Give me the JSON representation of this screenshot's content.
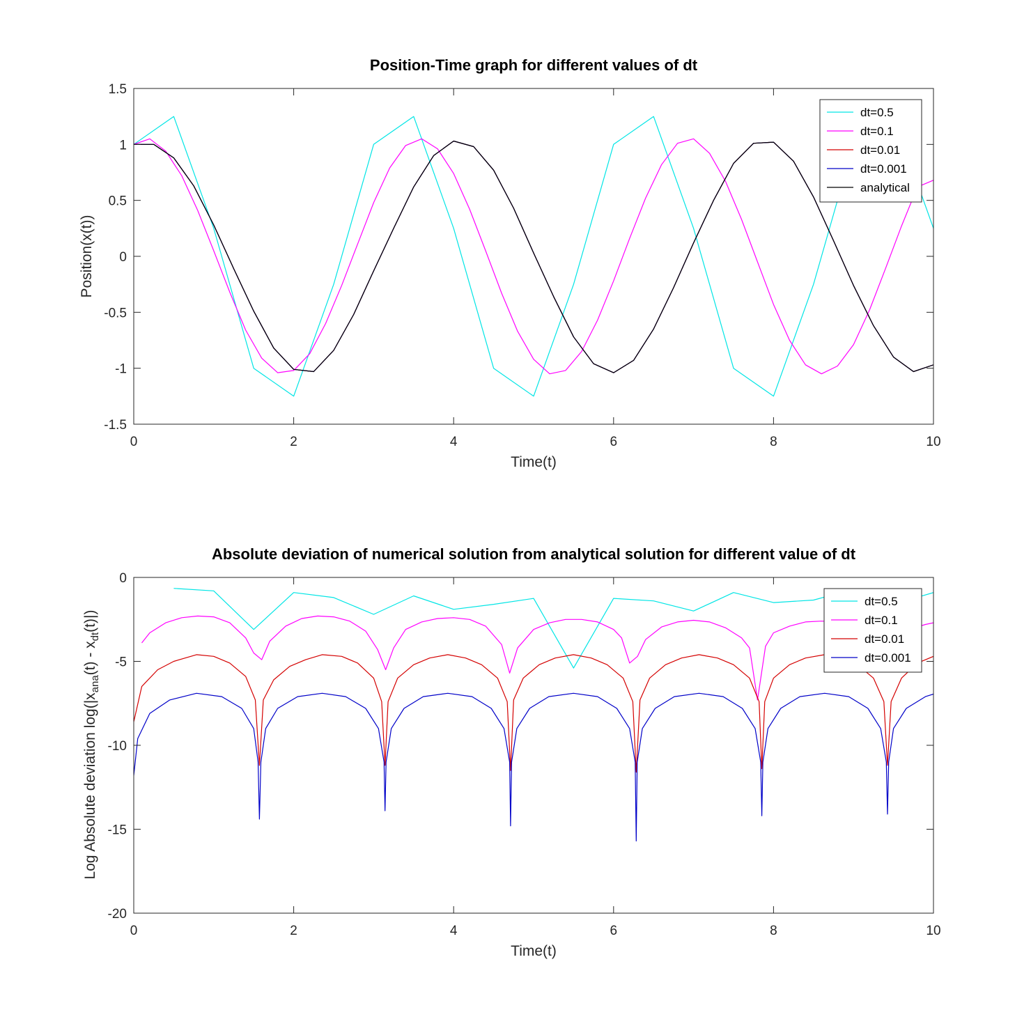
{
  "chart_data": [
    {
      "type": "line",
      "title": "Position-Time graph for different values of dt",
      "xlabel": "Time(t)",
      "ylabel": "Position(x(t))",
      "xlim": [
        0,
        10
      ],
      "ylim": [
        -1.5,
        1.5
      ],
      "xticks": [
        "0",
        "2",
        "4",
        "6",
        "8",
        "10"
      ],
      "yticks": [
        "1.5",
        "1",
        "0.5",
        "0",
        "-0.5",
        "-1",
        "-1.5"
      ],
      "legend_position": "top-right",
      "grid": false,
      "series": [
        {
          "name": "dt=0.5",
          "color": "#00e5e5",
          "x": [
            0,
            0.5,
            1,
            1.5,
            2,
            2.5,
            3,
            3.5,
            4,
            4.5,
            5,
            5.5,
            6,
            6.5,
            7,
            7.5,
            8,
            8.5,
            9,
            9.5,
            10
          ],
          "y": [
            1,
            1.25,
            0.25,
            -1,
            -1.25,
            -0.25,
            1,
            1.25,
            0.25,
            -1,
            -1.25,
            -0.25,
            1,
            1.25,
            0.25,
            -1,
            -1.25,
            -0.25,
            1,
            1.25,
            0.25
          ]
        },
        {
          "name": "dt=0.1",
          "color": "#ff00ff",
          "x": [
            0,
            0.2,
            0.4,
            0.6,
            0.8,
            1.0,
            1.2,
            1.4,
            1.6,
            1.8,
            2.0,
            2.2,
            2.4,
            2.6,
            2.8,
            3.0,
            3.2,
            3.4,
            3.6,
            3.8,
            4.0,
            4.2,
            4.4,
            4.6,
            4.8,
            5.0,
            5.2,
            5.4,
            5.6,
            5.8,
            6.0,
            6.2,
            6.4,
            6.6,
            6.8,
            7.0,
            7.2,
            7.4,
            7.6,
            7.8,
            8.0,
            8.2,
            8.4,
            8.6,
            8.8,
            9.0,
            9.2,
            9.4,
            9.6,
            9.8,
            10.0
          ],
          "y": [
            1.0,
            1.05,
            0.94,
            0.72,
            0.41,
            0.05,
            -0.32,
            -0.66,
            -0.91,
            -1.04,
            -1.02,
            -0.87,
            -0.6,
            -0.26,
            0.11,
            0.48,
            0.79,
            0.99,
            1.05,
            0.96,
            0.74,
            0.42,
            0.05,
            -0.33,
            -0.67,
            -0.92,
            -1.05,
            -1.02,
            -0.85,
            -0.57,
            -0.22,
            0.16,
            0.52,
            0.82,
            1.01,
            1.05,
            0.92,
            0.67,
            0.33,
            -0.05,
            -0.43,
            -0.75,
            -0.97,
            -1.05,
            -0.98,
            -0.79,
            -0.48,
            -0.11,
            0.27,
            0.62,
            0.68
          ]
        },
        {
          "name": "dt=0.01",
          "color": "#d40000",
          "x": [
            0,
            0.25,
            0.5,
            0.75,
            1.0,
            1.25,
            1.5,
            1.75,
            2.0,
            2.25,
            2.5,
            2.75,
            3.0,
            3.25,
            3.5,
            3.75,
            4.0,
            4.25,
            4.5,
            4.75,
            5.0,
            5.25,
            5.5,
            5.75,
            6.0,
            6.25,
            6.5,
            6.75,
            7.0,
            7.25,
            7.5,
            7.75,
            8.0,
            8.25,
            8.5,
            8.75,
            9.0,
            9.25,
            9.5,
            9.75,
            10.0
          ],
          "y": [
            1.0,
            1.0,
            0.88,
            0.63,
            0.28,
            -0.11,
            -0.49,
            -0.82,
            -1.01,
            -1.03,
            -0.84,
            -0.52,
            -0.13,
            0.25,
            0.62,
            0.9,
            1.03,
            0.98,
            0.77,
            0.43,
            0.03,
            -0.36,
            -0.72,
            -0.96,
            -1.04,
            -0.93,
            -0.65,
            -0.28,
            0.12,
            0.5,
            0.83,
            1.01,
            1.02,
            0.85,
            0.53,
            0.14,
            -0.26,
            -0.62,
            -0.9,
            -1.03,
            -0.97
          ]
        },
        {
          "name": "dt=0.001",
          "color": "#0000c8",
          "x": [
            0,
            0.25,
            0.5,
            0.75,
            1.0,
            1.25,
            1.5,
            1.75,
            2.0,
            2.25,
            2.5,
            2.75,
            3.0,
            3.25,
            3.5,
            3.75,
            4.0,
            4.25,
            4.5,
            4.75,
            5.0,
            5.25,
            5.5,
            5.75,
            6.0,
            6.25,
            6.5,
            6.75,
            7.0,
            7.25,
            7.5,
            7.75,
            8.0,
            8.25,
            8.5,
            8.75,
            9.0,
            9.25,
            9.5,
            9.75,
            10.0
          ],
          "y": [
            1.0,
            1.0,
            0.88,
            0.63,
            0.28,
            -0.11,
            -0.49,
            -0.82,
            -1.01,
            -1.03,
            -0.84,
            -0.52,
            -0.13,
            0.25,
            0.62,
            0.9,
            1.03,
            0.98,
            0.77,
            0.43,
            0.03,
            -0.36,
            -0.72,
            -0.96,
            -1.04,
            -0.93,
            -0.65,
            -0.28,
            0.12,
            0.5,
            0.83,
            1.01,
            1.02,
            0.85,
            0.53,
            0.14,
            -0.26,
            -0.62,
            -0.9,
            -1.03,
            -0.97
          ]
        },
        {
          "name": "analytical",
          "color": "#000000",
          "x": [
            0,
            0.25,
            0.5,
            0.75,
            1.0,
            1.25,
            1.5,
            1.75,
            2.0,
            2.25,
            2.5,
            2.75,
            3.0,
            3.25,
            3.5,
            3.75,
            4.0,
            4.25,
            4.5,
            4.75,
            5.0,
            5.25,
            5.5,
            5.75,
            6.0,
            6.25,
            6.5,
            6.75,
            7.0,
            7.25,
            7.5,
            7.75,
            8.0,
            8.25,
            8.5,
            8.75,
            9.0,
            9.25,
            9.5,
            9.75,
            10.0
          ],
          "y": [
            1.0,
            1.0,
            0.88,
            0.63,
            0.28,
            -0.11,
            -0.49,
            -0.82,
            -1.01,
            -1.03,
            -0.84,
            -0.52,
            -0.13,
            0.25,
            0.62,
            0.9,
            1.03,
            0.98,
            0.77,
            0.43,
            0.03,
            -0.36,
            -0.72,
            -0.96,
            -1.04,
            -0.93,
            -0.65,
            -0.28,
            0.12,
            0.5,
            0.83,
            1.01,
            1.02,
            0.85,
            0.53,
            0.14,
            -0.26,
            -0.62,
            -0.9,
            -1.03,
            -0.97
          ]
        }
      ]
    },
    {
      "type": "line",
      "title": "Absolute deviation of numerical solution from analytical solution for different value of dt",
      "xlabel": "Time(t)",
      "ylabel_parts": [
        "Log Absolute deviation log(|x",
        "ana",
        "(t) - x",
        "dt",
        "(t)|)"
      ],
      "xlim": [
        0,
        10
      ],
      "ylim": [
        -20,
        0
      ],
      "xticks": [
        "0",
        "2",
        "4",
        "6",
        "8",
        "10"
      ],
      "yticks": [
        "0",
        "-5",
        "-10",
        "-15",
        "-20"
      ],
      "legend_position": "top-right",
      "grid": false,
      "series": [
        {
          "name": "dt=0.5",
          "color": "#00e5e5",
          "x": [
            0.5,
            1.0,
            1.5,
            2.0,
            2.5,
            3.0,
            3.5,
            4.0,
            4.5,
            5.0,
            5.5,
            6.0,
            6.5,
            7.0,
            7.5,
            8.0,
            8.5,
            9.0,
            9.5,
            10.0
          ],
          "y": [
            -0.65,
            -0.8,
            -3.1,
            -0.9,
            -1.2,
            -2.2,
            -1.1,
            -1.9,
            -1.6,
            -1.25,
            -5.4,
            -1.25,
            -1.4,
            -2.0,
            -0.9,
            -1.5,
            -1.35,
            -0.7,
            -1.6,
            -0.9
          ]
        },
        {
          "name": "dt=0.1",
          "color": "#ff00ff",
          "x": [
            0.1,
            0.2,
            0.4,
            0.6,
            0.8,
            1.0,
            1.2,
            1.4,
            1.5,
            1.6,
            1.7,
            1.9,
            2.1,
            2.3,
            2.5,
            2.7,
            2.9,
            3.05,
            3.15,
            3.25,
            3.4,
            3.6,
            3.8,
            4.0,
            4.2,
            4.4,
            4.6,
            4.7,
            4.8,
            5.0,
            5.2,
            5.4,
            5.6,
            5.8,
            6.0,
            6.1,
            6.2,
            6.3,
            6.4,
            6.6,
            6.8,
            7.0,
            7.2,
            7.4,
            7.6,
            7.7,
            7.8,
            7.9,
            8.0,
            8.2,
            8.4,
            8.6,
            8.8,
            9.0,
            9.2,
            9.3,
            9.4,
            9.5,
            9.7,
            9.9,
            10.0
          ],
          "y": [
            -3.9,
            -3.3,
            -2.7,
            -2.4,
            -2.3,
            -2.35,
            -2.7,
            -3.6,
            -4.5,
            -4.9,
            -3.8,
            -2.9,
            -2.45,
            -2.3,
            -2.35,
            -2.6,
            -3.2,
            -4.3,
            -5.5,
            -4.2,
            -3.1,
            -2.65,
            -2.45,
            -2.4,
            -2.5,
            -2.9,
            -4.0,
            -5.7,
            -4.2,
            -3.1,
            -2.7,
            -2.5,
            -2.5,
            -2.65,
            -3.1,
            -3.6,
            -5.1,
            -4.7,
            -3.7,
            -2.95,
            -2.65,
            -2.55,
            -2.65,
            -3.0,
            -3.6,
            -4.2,
            -7.3,
            -4.1,
            -3.3,
            -2.9,
            -2.65,
            -2.6,
            -2.65,
            -2.9,
            -3.4,
            -4.1,
            -5.0,
            -4.0,
            -3.1,
            -2.8,
            -2.7
          ]
        },
        {
          "name": "dt=0.01",
          "color": "#d40000",
          "x": [
            0,
            0.1,
            0.3,
            0.5,
            0.785,
            1.0,
            1.2,
            1.4,
            1.52,
            1.571,
            1.62,
            1.75,
            1.95,
            2.15,
            2.356,
            2.6,
            2.8,
            3.0,
            3.1,
            3.142,
            3.18,
            3.3,
            3.5,
            3.7,
            3.927,
            4.15,
            4.35,
            4.55,
            4.67,
            4.712,
            4.75,
            4.87,
            5.07,
            5.27,
            5.498,
            5.72,
            5.92,
            6.12,
            6.24,
            6.283,
            6.33,
            6.45,
            6.65,
            6.85,
            7.069,
            7.3,
            7.5,
            7.7,
            7.82,
            7.854,
            7.89,
            8.0,
            8.2,
            8.4,
            8.639,
            8.85,
            9.05,
            9.25,
            9.38,
            9.425,
            9.47,
            9.6,
            9.8,
            10.0
          ],
          "y": [
            -8.6,
            -6.5,
            -5.5,
            -5.0,
            -4.6,
            -4.7,
            -5.1,
            -5.9,
            -7.3,
            -11.2,
            -7.3,
            -6.1,
            -5.3,
            -4.9,
            -4.6,
            -4.7,
            -5.1,
            -6.0,
            -7.4,
            -11.2,
            -7.4,
            -6.0,
            -5.2,
            -4.8,
            -4.6,
            -4.8,
            -5.2,
            -6.0,
            -7.4,
            -11.5,
            -7.3,
            -6.0,
            -5.2,
            -4.8,
            -4.6,
            -4.8,
            -5.2,
            -6.0,
            -7.4,
            -11.6,
            -7.3,
            -6.0,
            -5.2,
            -4.8,
            -4.6,
            -4.8,
            -5.2,
            -6.0,
            -7.4,
            -11.4,
            -7.4,
            -6.0,
            -5.2,
            -4.8,
            -4.6,
            -4.8,
            -5.2,
            -6.0,
            -7.4,
            -11.2,
            -7.4,
            -6.0,
            -5.1,
            -4.7
          ]
        },
        {
          "name": "dt=0.001",
          "color": "#0000c8",
          "x": [
            0,
            0.05,
            0.2,
            0.45,
            0.785,
            1.1,
            1.35,
            1.5,
            1.555,
            1.571,
            1.59,
            1.65,
            1.8,
            2.05,
            2.356,
            2.65,
            2.9,
            3.06,
            3.13,
            3.142,
            3.155,
            3.22,
            3.38,
            3.62,
            3.927,
            4.23,
            4.47,
            4.63,
            4.7,
            4.712,
            4.725,
            4.79,
            4.95,
            5.19,
            5.498,
            5.8,
            6.04,
            6.2,
            6.27,
            6.283,
            6.295,
            6.36,
            6.52,
            6.76,
            7.069,
            7.37,
            7.61,
            7.77,
            7.84,
            7.854,
            7.867,
            7.93,
            8.09,
            8.33,
            8.639,
            8.94,
            9.18,
            9.34,
            9.41,
            9.425,
            9.44,
            9.5,
            9.66,
            9.9,
            10.0
          ],
          "y": [
            -11.8,
            -9.6,
            -8.1,
            -7.3,
            -6.9,
            -7.1,
            -7.8,
            -9.0,
            -11.0,
            -14.4,
            -11.0,
            -9.0,
            -7.8,
            -7.1,
            -6.9,
            -7.1,
            -7.8,
            -9.0,
            -11.0,
            -13.9,
            -11.0,
            -9.0,
            -7.8,
            -7.1,
            -6.9,
            -7.1,
            -7.8,
            -9.0,
            -11.0,
            -14.8,
            -11.0,
            -9.0,
            -7.8,
            -7.1,
            -6.9,
            -7.1,
            -7.8,
            -9.0,
            -11.0,
            -15.7,
            -11.0,
            -9.0,
            -7.8,
            -7.1,
            -6.9,
            -7.1,
            -7.8,
            -9.0,
            -11.0,
            -14.2,
            -11.0,
            -9.0,
            -7.8,
            -7.1,
            -6.9,
            -7.1,
            -7.8,
            -9.0,
            -11.0,
            -14.1,
            -11.0,
            -9.0,
            -7.8,
            -7.1,
            -6.95
          ]
        }
      ]
    }
  ]
}
